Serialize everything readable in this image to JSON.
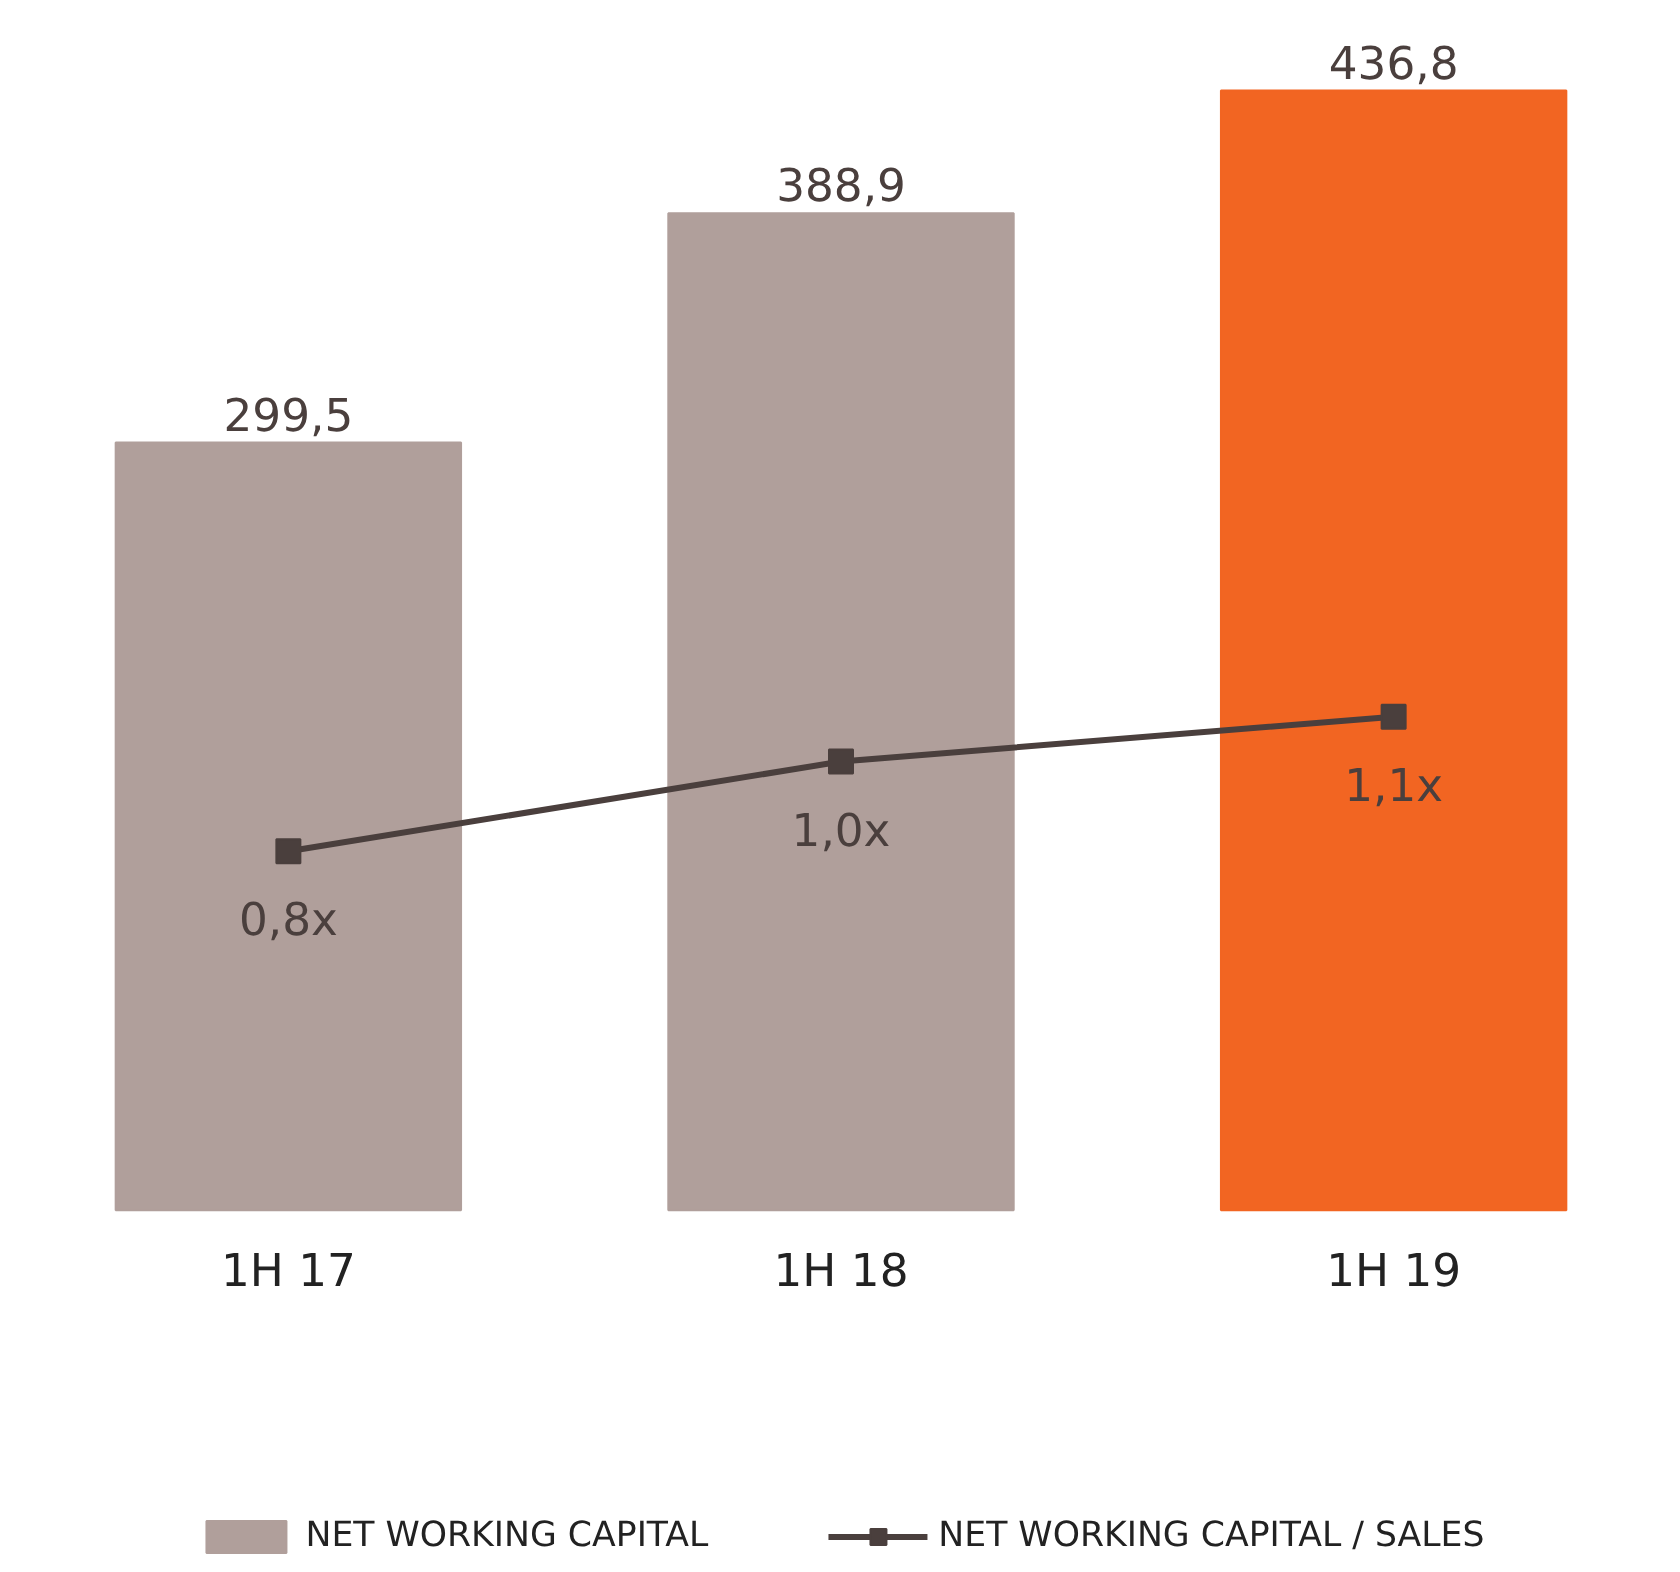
{
  "chart_data": {
    "type": "bar",
    "categories": [
      "1H 17",
      "1H 18",
      "1H 19"
    ],
    "tick_labels": "x",
    "grid": false,
    "legend": "bottom",
    "series": [
      {
        "name": "NET WORKING CAPITAL",
        "color": "#b09f9b",
        "colors": [
          "#b09f9b",
          "#b09f9b",
          "#f26522"
        ],
        "values": [
          299.5,
          388.9,
          436.8
        ],
        "value_labels": [
          "299,5",
          "388,9",
          "436,8"
        ]
      },
      {
        "name": "NET WORKING CAPITAL / SALES",
        "type": "line",
        "axis": "y2",
        "color": "#4a3f3d",
        "marker": "square",
        "values": [
          0.8,
          1.0,
          1.1
        ],
        "value_labels": [
          "0,8x",
          "1,0x",
          "1,1x"
        ]
      }
    ]
  }
}
